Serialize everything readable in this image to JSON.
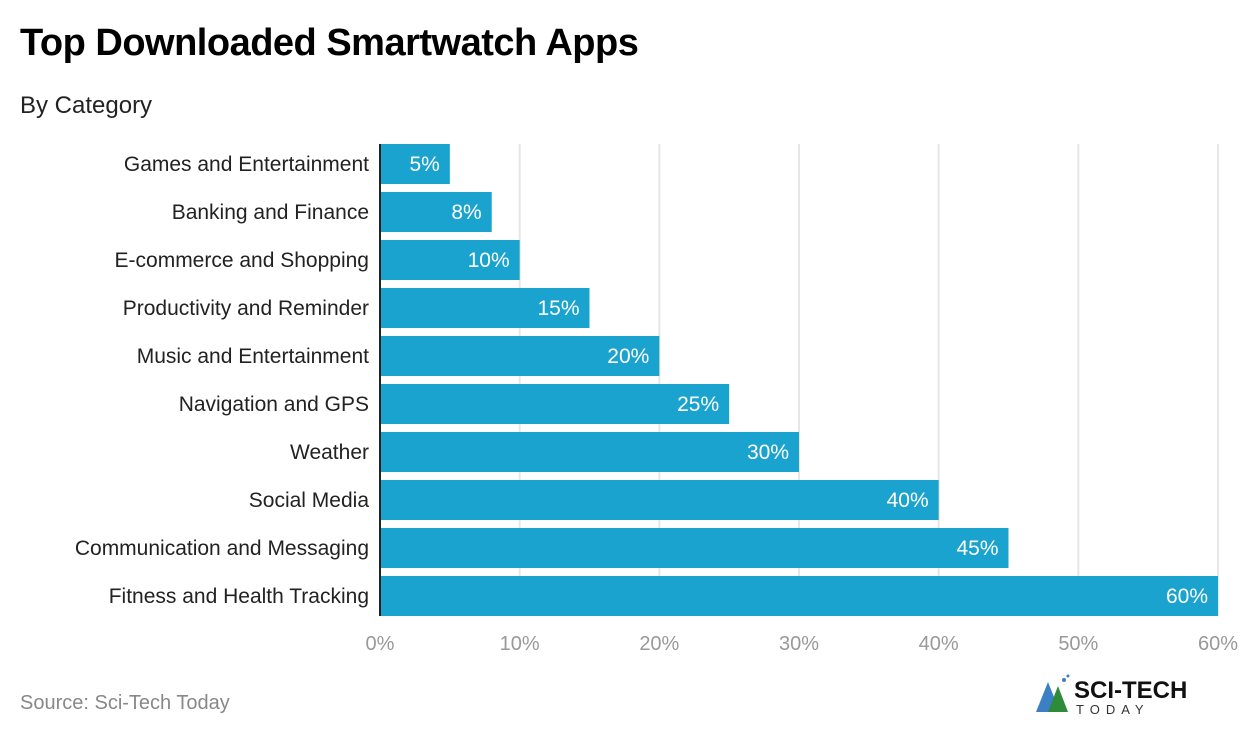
{
  "title": "Top Downloaded Smartwatch Apps",
  "subtitle": "By Category",
  "source": "Source: Sci-Tech Today",
  "logo": {
    "text": "SCI-TECH",
    "subtext": "TODAY"
  },
  "colors": {
    "bar": "#1aa3cf",
    "bar_label": "#ffffff",
    "grid": "#e6e6e6",
    "axis": "#222222",
    "tick": "#999999"
  },
  "chart_data": {
    "type": "bar",
    "orientation": "horizontal",
    "categories": [
      "Games and Entertainment",
      "Banking and Finance",
      "E-commerce and Shopping",
      "Productivity and Reminder",
      "Music and Entertainment",
      "Navigation and GPS",
      "Weather",
      "Social Media",
      "Communication and Messaging",
      "Fitness and Health Tracking"
    ],
    "values": [
      5,
      8,
      10,
      15,
      20,
      25,
      30,
      40,
      45,
      60
    ],
    "value_labels": [
      "5%",
      "8%",
      "10%",
      "15%",
      "20%",
      "25%",
      "30%",
      "40%",
      "45%",
      "60%"
    ],
    "xlim": [
      0,
      60
    ],
    "xticks": [
      0,
      10,
      20,
      30,
      40,
      50,
      60
    ],
    "xtick_labels": [
      "0%",
      "10%",
      "20%",
      "30%",
      "40%",
      "50%",
      "60%"
    ],
    "grid": true,
    "title": "Top Downloaded Smartwatch Apps",
    "subtitle": "By Category"
  }
}
